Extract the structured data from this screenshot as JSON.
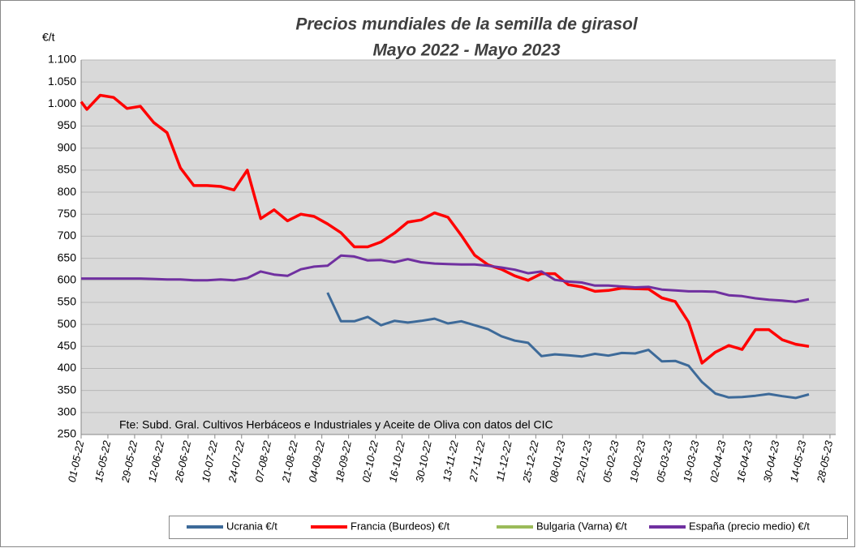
{
  "chart_data": {
    "type": "line",
    "title": "Precios mundiales de la semilla de girasol",
    "subtitle": "Mayo 2022 -  Mayo 2023",
    "y_label": "€/t",
    "annotation": "Fte: Subd. Gral. Cultivos Herbáceos e Industriales y Aceite de Oliva con datos del CIC",
    "x": [
      "01-05-22",
      "04-05-22",
      "11-05-22",
      "18-05-22",
      "25-05-22",
      "01-06-22",
      "08-06-22",
      "15-06-22",
      "22-06-22",
      "29-06-22",
      "06-07-22",
      "13-07-22",
      "20-07-22",
      "27-07-22",
      "03-08-22",
      "10-08-22",
      "17-08-22",
      "24-08-22",
      "31-08-22",
      "07-09-22",
      "14-09-22",
      "21-09-22",
      "28-09-22",
      "05-10-22",
      "12-10-22",
      "19-10-22",
      "26-10-22",
      "02-11-22",
      "09-11-22",
      "16-11-22",
      "23-11-22",
      "30-11-22",
      "07-12-22",
      "14-12-22",
      "21-12-22",
      "28-12-22",
      "04-01-23",
      "11-01-23",
      "18-01-23",
      "25-01-23",
      "01-02-23",
      "08-02-23",
      "15-02-23",
      "22-02-23",
      "01-03-23",
      "08-03-23",
      "15-03-23",
      "22-03-23",
      "29-03-23",
      "05-04-23",
      "12-04-23",
      "19-04-23",
      "26-04-23",
      "03-05-23",
      "10-05-23",
      "17-05-23"
    ],
    "series": [
      {
        "name": "Ucrania €/t",
        "color": "#3d6a99",
        "values": [
          null,
          null,
          null,
          null,
          null,
          null,
          null,
          null,
          null,
          null,
          null,
          null,
          null,
          null,
          null,
          null,
          null,
          null,
          null,
          572,
          507,
          507,
          517,
          498,
          508,
          504,
          508,
          513,
          502,
          507,
          498,
          489,
          473,
          463,
          458,
          428,
          432,
          430,
          427,
          433,
          429,
          435,
          434,
          442,
          416,
          417,
          406,
          369,
          343,
          334,
          335,
          338,
          342,
          337,
          333,
          341
        ]
      },
      {
        "name": "Francia (Burdeos) €/t",
        "color": "#ff0000",
        "values": [
          1005,
          988,
          1020,
          1015,
          990,
          995,
          958,
          935,
          855,
          815,
          815,
          813,
          805,
          850,
          740,
          760,
          735,
          750,
          745,
          728,
          708,
          676,
          676,
          687,
          707,
          732,
          737,
          753,
          743,
          702,
          657,
          635,
          625,
          610,
          600,
          615,
          615,
          590,
          585,
          575,
          577,
          582,
          581,
          580,
          560,
          552,
          505,
          412,
          437,
          452,
          443,
          488,
          488,
          465,
          455,
          450
        ]
      },
      {
        "name": "Bulgaria (Varna) €/t",
        "color": "#9bbb59",
        "values": [
          null,
          null,
          null,
          null,
          null,
          null,
          null,
          null,
          null,
          null,
          null,
          null,
          null,
          null,
          null,
          null,
          null,
          null,
          null,
          null,
          null,
          null,
          null,
          null,
          null,
          null,
          null,
          null,
          null,
          null,
          null,
          null,
          null,
          null,
          null,
          null,
          null,
          null,
          null,
          null,
          null,
          null,
          null,
          null,
          null,
          null,
          null,
          null,
          null,
          null,
          null,
          null,
          null,
          null,
          null,
          null
        ]
      },
      {
        "name": "España (precio medio) €/t",
        "color": "#7030a0",
        "values": [
          604,
          604,
          604,
          604,
          604,
          604,
          603,
          602,
          602,
          600,
          600,
          602,
          600,
          605,
          620,
          613,
          610,
          625,
          631,
          633,
          656,
          654,
          645,
          646,
          641,
          648,
          641,
          638,
          637,
          636,
          636,
          633,
          629,
          624,
          616,
          620,
          601,
          597,
          595,
          588,
          588,
          586,
          584,
          585,
          579,
          577,
          575,
          575,
          574,
          566,
          564,
          559,
          556,
          554,
          551,
          557
        ]
      }
    ],
    "xlim": [
      "01-05-22",
      "31-05-23"
    ],
    "xticks": [
      "01-05-22",
      "15-05-22",
      "29-05-22",
      "12-06-22",
      "26-06-22",
      "10-07-22",
      "24-07-22",
      "07-08-22",
      "21-08-22",
      "04-09-22",
      "18-09-22",
      "02-10-22",
      "16-10-22",
      "30-10-22",
      "13-11-22",
      "27-11-22",
      "11-12-22",
      "25-12-22",
      "08-01-23",
      "22-01-23",
      "05-02-23",
      "19-02-23",
      "05-03-23",
      "19-03-23",
      "02-04-23",
      "16-04-23",
      "30-04-23",
      "14-05-23",
      "28-05-23"
    ],
    "ylim": [
      250,
      1100
    ],
    "yticks": [
      250,
      300,
      350,
      400,
      450,
      500,
      550,
      600,
      650,
      700,
      750,
      800,
      850,
      900,
      950,
      {
        "value": 1000,
        "label": "1.000"
      },
      {
        "value": 1050,
        "label": "1.050"
      },
      {
        "value": 1100,
        "label": "1.100"
      }
    ],
    "grid": true,
    "legend": "bottom"
  }
}
